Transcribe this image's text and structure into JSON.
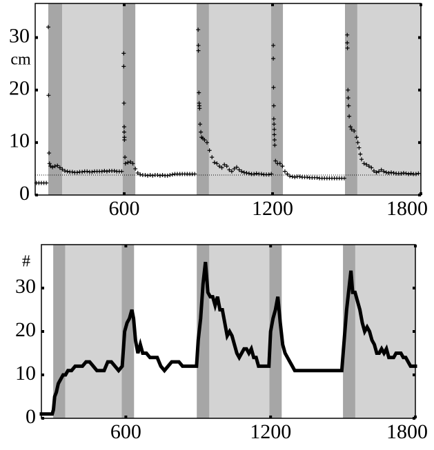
{
  "chart_data": [
    {
      "type": "scatter",
      "ylabel": "cm",
      "color": "#000000",
      "xlim": [
        240,
        1800
      ],
      "ylim": [
        0,
        36.5
      ],
      "xticks": [
        600,
        1200,
        1800
      ],
      "yticks": [
        0,
        10,
        20,
        30
      ],
      "hline": 3.8,
      "shading": [
        {
          "start": 293,
          "end": 349,
          "color": "#a6a6a6"
        },
        {
          "start": 349,
          "end": 594,
          "color": "#d3d3d3"
        },
        {
          "start": 594,
          "end": 645,
          "color": "#a6a6a6"
        },
        {
          "start": 893,
          "end": 943,
          "color": "#a6a6a6"
        },
        {
          "start": 943,
          "end": 1194,
          "color": "#d3d3d3"
        },
        {
          "start": 1194,
          "end": 1242,
          "color": "#a6a6a6"
        },
        {
          "start": 1493,
          "end": 1543,
          "color": "#a6a6a6"
        },
        {
          "start": 1543,
          "end": 1800,
          "color": "#d3d3d3"
        }
      ],
      "x": [
        245,
        255,
        265,
        275,
        285,
        293,
        294,
        296,
        298,
        302,
        310,
        320,
        330,
        340,
        350,
        360,
        370,
        380,
        390,
        400,
        410,
        420,
        430,
        440,
        450,
        460,
        470,
        480,
        490,
        500,
        510,
        520,
        530,
        540,
        550,
        560,
        570,
        580,
        590,
        598,
        598,
        599,
        600,
        600,
        601,
        601,
        603,
        605,
        615,
        625,
        635,
        645,
        655,
        665,
        675,
        685,
        695,
        705,
        715,
        725,
        735,
        745,
        755,
        765,
        775,
        785,
        795,
        805,
        815,
        825,
        835,
        845,
        855,
        865,
        875,
        885,
        899,
        900,
        900,
        902,
        903,
        904,
        905,
        907,
        910,
        913,
        918,
        925,
        935,
        945,
        955,
        965,
        975,
        985,
        995,
        1005,
        1015,
        1025,
        1035,
        1045,
        1055,
        1065,
        1075,
        1085,
        1095,
        1105,
        1115,
        1125,
        1135,
        1145,
        1155,
        1165,
        1175,
        1185,
        1195,
        1203,
        1203,
        1204,
        1205,
        1205,
        1206,
        1207,
        1207,
        1208,
        1209,
        1212,
        1220,
        1230,
        1240,
        1250,
        1260,
        1270,
        1280,
        1290,
        1300,
        1310,
        1320,
        1330,
        1340,
        1350,
        1360,
        1370,
        1380,
        1390,
        1400,
        1410,
        1420,
        1430,
        1440,
        1450,
        1460,
        1470,
        1480,
        1490,
        1502,
        1502,
        1503,
        1505,
        1506,
        1508,
        1510,
        1515,
        1520,
        1530,
        1540,
        1545,
        1550,
        1555,
        1560,
        1570,
        1580,
        1590,
        1600,
        1610,
        1620,
        1630,
        1640,
        1650,
        1660,
        1670,
        1680,
        1690,
        1700,
        1710,
        1720,
        1730,
        1740,
        1750,
        1760,
        1770,
        1780,
        1790
      ],
      "values": [
        2.3,
        2.3,
        2.3,
        2.3,
        2.3,
        32,
        19,
        8,
        6,
        5.5,
        5.3,
        5.5,
        5.6,
        5.2,
        4.9,
        4.6,
        4.5,
        4.4,
        4.4,
        4.3,
        4.3,
        4.4,
        4.4,
        4.5,
        4.5,
        4.4,
        4.4,
        4.5,
        4.5,
        4.5,
        4.5,
        4.6,
        4.5,
        4.6,
        4.6,
        4.6,
        4.5,
        4.5,
        4.5,
        27,
        24.5,
        17.5,
        13,
        12,
        11,
        10.5,
        7.2,
        6,
        6.2,
        6.3,
        6,
        5,
        4.2,
        3.9,
        3.8,
        3.8,
        3.7,
        3.8,
        3.7,
        3.8,
        3.8,
        3.7,
        3.8,
        3.7,
        3.7,
        3.8,
        3.9,
        4,
        4,
        4,
        4,
        4,
        4,
        4,
        4,
        4,
        31.5,
        28.5,
        27.5,
        19.5,
        17.5,
        17,
        16.5,
        13.5,
        12,
        11,
        10.8,
        10.5,
        10,
        8.5,
        7.2,
        6.2,
        6,
        5.5,
        5.2,
        5.8,
        5.5,
        4.8,
        4.5,
        5,
        5.3,
        4.8,
        4.5,
        4.3,
        4.2,
        4.1,
        4,
        4,
        4.1,
        4,
        4,
        3.9,
        3.9,
        3.9,
        4,
        28.5,
        26,
        20.5,
        17,
        14.5,
        13.5,
        12.5,
        11.5,
        10.5,
        9.5,
        6.5,
        6,
        6,
        5.5,
        4.5,
        4,
        3.6,
        3.5,
        3.4,
        3.5,
        3.5,
        3.4,
        3.4,
        3.4,
        3.3,
        3.3,
        3.3,
        3.3,
        3.2,
        3.2,
        3.2,
        3.2,
        3.2,
        3.2,
        3.2,
        3.2,
        3.2,
        3.2,
        3.2,
        30.5,
        29,
        28,
        20,
        18.5,
        17,
        15,
        13,
        12.5,
        12.2,
        11,
        10,
        9,
        7.8,
        6.8,
        6,
        5.8,
        5.5,
        5.2,
        4.6,
        4.3,
        4.5,
        4.8,
        4.5,
        4.3,
        4.2,
        4.3,
        4.2,
        4.1,
        4.1,
        4.1,
        4.2,
        4.1,
        4,
        4.1,
        4,
        4,
        4.1
      ]
    },
    {
      "type": "line",
      "ylabel": "#",
      "color": "#000000",
      "xlim": [
        250,
        1800
      ],
      "ylim": [
        0,
        40
      ],
      "xticks": [
        600,
        1200,
        1800
      ],
      "yticks": [
        0,
        10,
        20,
        30
      ],
      "shading": [
        {
          "start": 299,
          "end": 349,
          "color": "#a6a6a6"
        },
        {
          "start": 349,
          "end": 583,
          "color": "#d3d3d3"
        },
        {
          "start": 583,
          "end": 634,
          "color": "#a6a6a6"
        },
        {
          "start": 894,
          "end": 946,
          "color": "#a6a6a6"
        },
        {
          "start": 946,
          "end": 1195,
          "color": "#d3d3d3"
        },
        {
          "start": 1195,
          "end": 1246,
          "color": "#a6a6a6"
        },
        {
          "start": 1500,
          "end": 1551,
          "color": "#a6a6a6"
        },
        {
          "start": 1551,
          "end": 1800,
          "color": "#d3d3d3"
        }
      ],
      "x": [
        250,
        265,
        280,
        295,
        300,
        305,
        312,
        320,
        330,
        340,
        350,
        360,
        375,
        390,
        405,
        420,
        435,
        450,
        465,
        480,
        495,
        510,
        525,
        540,
        555,
        570,
        585,
        595,
        605,
        615,
        625,
        632,
        640,
        650,
        660,
        670,
        685,
        700,
        715,
        730,
        745,
        760,
        775,
        790,
        805,
        820,
        835,
        850,
        865,
        880,
        893,
        900,
        910,
        920,
        930,
        940,
        950,
        960,
        970,
        980,
        990,
        1000,
        1010,
        1020,
        1030,
        1040,
        1050,
        1060,
        1070,
        1080,
        1090,
        1100,
        1110,
        1120,
        1130,
        1140,
        1150,
        1165,
        1180,
        1193,
        1200,
        1210,
        1220,
        1230,
        1240,
        1250,
        1260,
        1270,
        1280,
        1290,
        1300,
        1320,
        1340,
        1360,
        1380,
        1400,
        1420,
        1440,
        1460,
        1480,
        1495,
        1505,
        1515,
        1525,
        1533,
        1540,
        1550,
        1560,
        1570,
        1580,
        1590,
        1600,
        1610,
        1620,
        1630,
        1640,
        1650,
        1660,
        1670,
        1680,
        1690,
        1700,
        1710,
        1720,
        1730,
        1740,
        1750,
        1760,
        1770,
        1780,
        1790,
        1800
      ],
      "values": [
        1,
        1,
        1,
        1,
        2,
        5,
        6,
        8,
        9,
        10,
        10,
        11,
        11,
        12,
        12,
        12,
        13,
        13,
        12,
        11,
        11,
        11,
        13,
        13,
        12,
        11,
        12,
        20,
        22,
        23,
        25,
        23,
        18,
        15,
        17,
        15,
        15,
        14,
        14,
        14,
        12,
        11,
        12,
        13,
        13,
        13,
        12,
        12,
        12,
        12,
        12,
        18,
        23,
        31,
        36,
        29,
        28,
        28,
        26,
        28,
        25,
        25,
        22,
        19,
        20,
        19,
        17,
        15,
        14,
        15,
        16,
        16,
        15,
        16,
        14,
        14,
        12,
        12,
        12,
        12,
        20,
        23,
        25,
        28,
        22,
        17,
        15,
        14,
        13,
        12,
        11,
        11,
        11,
        11,
        11,
        11,
        11,
        11,
        11,
        11,
        11,
        18,
        25,
        30,
        34,
        29,
        29,
        27,
        25,
        22,
        20,
        21,
        20,
        18,
        17,
        15,
        15,
        16,
        15,
        16,
        14,
        14,
        14,
        15,
        15,
        15,
        14,
        14,
        13,
        12,
        12,
        12
      ]
    }
  ]
}
